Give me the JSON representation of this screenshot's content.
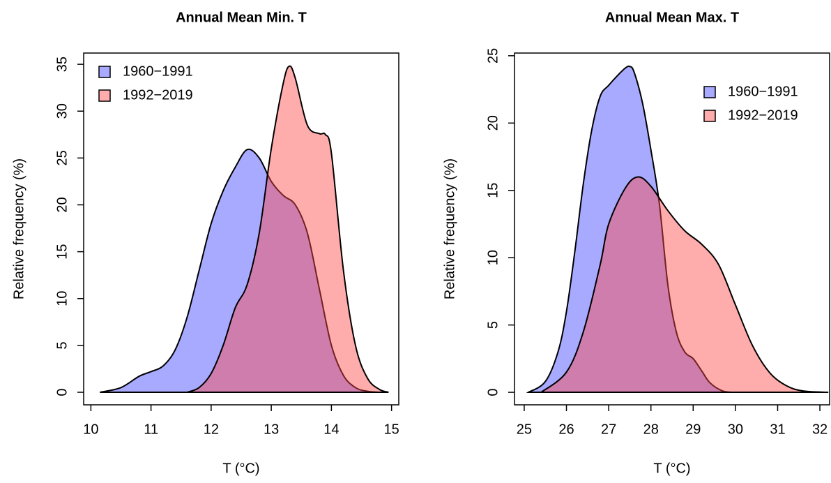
{
  "chart_data": [
    {
      "type": "area",
      "title": "Annual Mean Min. T",
      "x_label": "T (°C)",
      "y_label": "Relative frequency (%)",
      "xlim": [
        9.88,
        15.12
      ],
      "ylim": [
        -1.34,
        36.2
      ],
      "xticks": [
        10,
        11,
        12,
        13,
        14,
        15
      ],
      "yticks": [
        0,
        5,
        10,
        15,
        20,
        25,
        30,
        35
      ],
      "legend": "top-left",
      "series": [
        {
          "name": "1960−1991",
          "color": "rgba(80,85,255,0.5)",
          "x": [
            10.15,
            10.5,
            10.8,
            11.0,
            11.2,
            11.4,
            11.6,
            11.8,
            12.0,
            12.2,
            12.4,
            12.6,
            12.8,
            13.0,
            13.2,
            13.4,
            13.6,
            13.8,
            14.0,
            14.2,
            14.4,
            14.6,
            14.8
          ],
          "values": [
            0,
            0.5,
            1.7,
            2.2,
            2.8,
            4.5,
            8,
            13,
            18,
            21.5,
            24,
            25.9,
            25,
            22.5,
            21,
            20,
            17,
            11,
            5,
            1.8,
            0.5,
            0.1,
            0
          ]
        },
        {
          "name": "1992−2019",
          "color": "rgba(255,70,70,0.45)",
          "x": [
            11.6,
            11.8,
            12.0,
            12.2,
            12.4,
            12.6,
            12.8,
            13.0,
            13.2,
            13.3,
            13.4,
            13.6,
            13.8,
            13.9,
            14.0,
            14.2,
            14.4,
            14.6,
            14.8,
            14.95
          ],
          "values": [
            0,
            0.5,
            2,
            5,
            9,
            11.5,
            17,
            26,
            33,
            34.8,
            33.5,
            28.5,
            27.6,
            27.5,
            25.5,
            13,
            5,
            1.5,
            0.3,
            0
          ]
        }
      ]
    },
    {
      "type": "area",
      "title": "Annual Mean Max. T",
      "x_label": "T (°C)",
      "y_label": "Relative frequency (%)",
      "xlim": [
        24.77,
        32.23
      ],
      "ylim": [
        -0.93,
        25.2
      ],
      "xticks": [
        25,
        26,
        27,
        28,
        29,
        30,
        31,
        32
      ],
      "yticks": [
        0,
        5,
        10,
        15,
        20,
        25
      ],
      "legend": "top-right",
      "series": [
        {
          "name": "1960−1991",
          "color": "rgba(80,85,255,0.5)",
          "x": [
            25.1,
            25.5,
            25.8,
            26.0,
            26.2,
            26.4,
            26.6,
            26.8,
            27.0,
            27.2,
            27.4,
            27.5,
            27.6,
            27.8,
            28.0,
            28.2,
            28.4,
            28.6,
            28.8,
            29.0,
            29.2,
            29.4,
            29.7,
            30.0
          ],
          "values": [
            0,
            0.8,
            3,
            6,
            10.5,
            15.5,
            19.5,
            22,
            22.8,
            23.5,
            24.1,
            24.2,
            23.8,
            21.5,
            18,
            14,
            8,
            4.5,
            3,
            2.5,
            1.6,
            0.7,
            0.1,
            0
          ]
        },
        {
          "name": "1992−2019",
          "color": "rgba(255,70,70,0.45)",
          "x": [
            25.4,
            26.0,
            26.4,
            26.8,
            27.0,
            27.4,
            27.7,
            28.0,
            28.4,
            28.8,
            29.2,
            29.6,
            30.0,
            30.4,
            30.8,
            31.2,
            31.6,
            32.2
          ],
          "values": [
            0,
            1.5,
            4.5,
            9.5,
            12.5,
            15.2,
            16,
            15.3,
            13.5,
            12,
            11,
            9.5,
            6.5,
            3.5,
            1.5,
            0.5,
            0.1,
            0
          ]
        }
      ]
    }
  ]
}
